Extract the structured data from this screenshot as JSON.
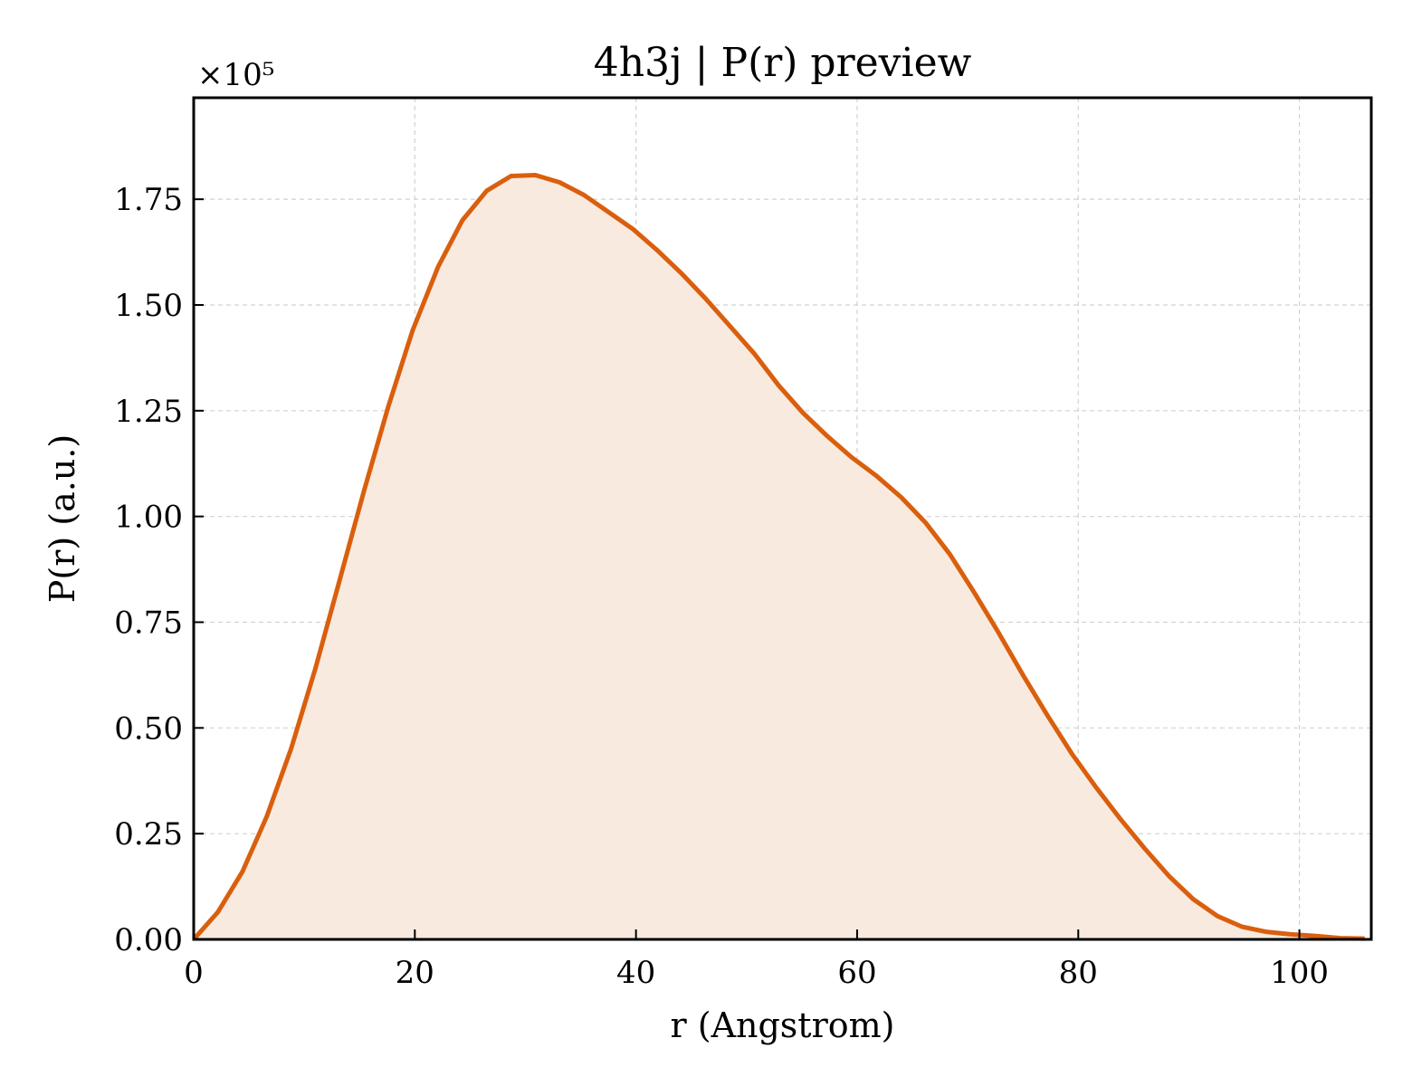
{
  "chart_data": {
    "type": "area",
    "title": "4h3j | P(r) preview",
    "xlabel": "r (Angstrom)",
    "ylabel": "P(r) (a.u.)",
    "y_scale_label": "×10⁵",
    "y_scale_factor": 100000,
    "xlim": [
      0,
      106.5
    ],
    "ylim": [
      0,
      1.99
    ],
    "x_ticks": [
      0,
      20,
      40,
      60,
      80,
      100
    ],
    "x_tick_labels": [
      "0",
      "20",
      "40",
      "60",
      "80",
      "100"
    ],
    "y_ticks": [
      0,
      0.25,
      0.5,
      0.75,
      1.0,
      1.25,
      1.5,
      1.75
    ],
    "y_tick_labels": [
      "0.00",
      "0.25",
      "0.50",
      "0.75",
      "1.00",
      "1.25",
      "1.50",
      "1.75"
    ],
    "grid": true,
    "line_color": "#d95f0e",
    "fill_color": "#f9eadf",
    "series": [
      {
        "x": [
          0,
          2.2,
          4.4,
          6.6,
          8.8,
          11.0,
          13.2,
          15.4,
          17.6,
          19.8,
          22.1,
          24.3,
          26.5,
          28.7,
          30.9,
          33.1,
          35.3,
          37.5,
          39.7,
          41.9,
          44.1,
          46.3,
          48.5,
          50.7,
          52.9,
          55.1,
          57.3,
          59.5,
          61.8,
          64.0,
          66.2,
          68.4,
          70.6,
          72.8,
          75.0,
          77.2,
          79.4,
          81.6,
          83.8,
          86.0,
          88.2,
          90.4,
          92.6,
          94.8,
          97.0,
          99.2,
          101.5,
          103.7,
          105.9
        ],
        "values": [
          0.0,
          0.065,
          0.16,
          0.29,
          0.45,
          0.64,
          0.85,
          1.06,
          1.26,
          1.44,
          1.59,
          1.7,
          1.77,
          1.805,
          1.807,
          1.79,
          1.76,
          1.72,
          1.68,
          1.63,
          1.575,
          1.515,
          1.45,
          1.385,
          1.31,
          1.245,
          1.19,
          1.14,
          1.095,
          1.045,
          0.985,
          0.91,
          0.82,
          0.725,
          0.625,
          0.53,
          0.44,
          0.36,
          0.285,
          0.215,
          0.15,
          0.095,
          0.055,
          0.03,
          0.018,
          0.012,
          0.008,
          0.003,
          0.002
        ]
      }
    ]
  }
}
